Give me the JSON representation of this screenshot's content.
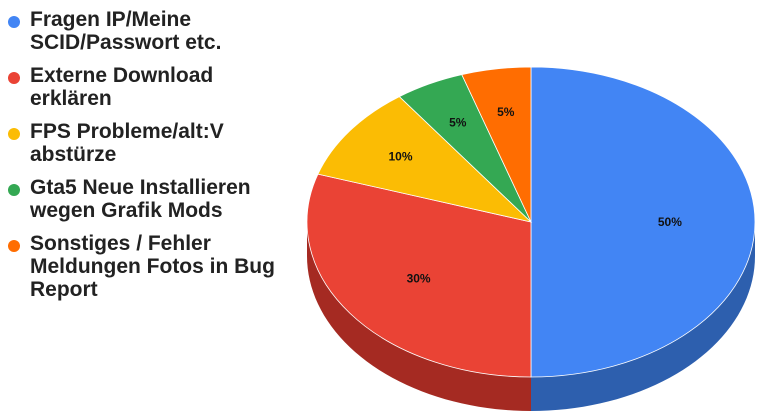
{
  "chart_data": {
    "type": "pie",
    "style": "3d",
    "legend_position": "left",
    "slices": [
      {
        "label": "Fragen IP/Meine SCID/Passwort etc.",
        "value": 50,
        "data_label": "50%",
        "color": "#4285f4",
        "side_color": "#2d5fae"
      },
      {
        "label": "Externe Download erklären",
        "value": 30,
        "data_label": "30%",
        "color": "#ea4335",
        "side_color": "#a52a22"
      },
      {
        "label": "FPS Probleme/alt:V abstürze",
        "value": 10,
        "data_label": "10%",
        "color": "#fbbc04",
        "side_color": "#b58700"
      },
      {
        "label": "Gta5 Neue Installieren wegen Grafik Mods",
        "value": 5,
        "data_label": "5%",
        "color": "#34a853",
        "side_color": "#23753a"
      },
      {
        "label": "Sonstiges / Fehler Meldungen Fotos in Bug Report",
        "value": 5,
        "data_label": "5%",
        "color": "#ff6d01",
        "side_color": "#b34c00"
      }
    ]
  }
}
